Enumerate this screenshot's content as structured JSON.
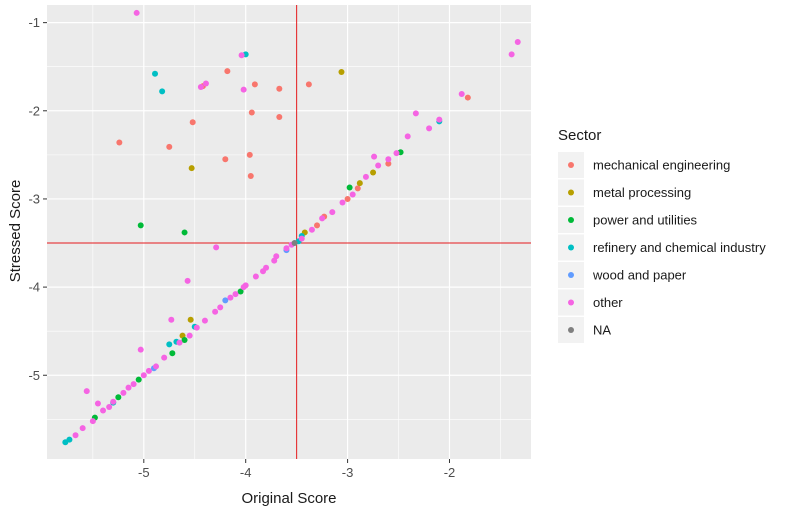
{
  "chart_data": {
    "type": "scatter",
    "xlabel": "Original Score",
    "ylabel": "Stressed Score",
    "xlim": [
      -5.95,
      -1.2
    ],
    "ylim": [
      -5.95,
      -0.8
    ],
    "x_ticks": [
      -5,
      -4,
      -3,
      -2
    ],
    "y_ticks": [
      -5,
      -4,
      -3,
      -2,
      -1
    ],
    "x_tick_labels": [
      "-5",
      "-4",
      "-3",
      "-2"
    ],
    "y_tick_labels": [
      "-5",
      "-4",
      "-3",
      "-2",
      "-1"
    ],
    "reference_lines": {
      "vertical_x": -3.5,
      "horizontal_y": -3.5,
      "color": "#e41a1c"
    },
    "grid": true,
    "panel_background": "#ebebeb",
    "legend": {
      "title": "Sector",
      "position": "right",
      "entries": [
        {
          "label": "mechanical engineering",
          "color": "#F8766D"
        },
        {
          "label": "metal processing",
          "color": "#B79F00"
        },
        {
          "label": "power and utilities",
          "color": "#00BA38"
        },
        {
          "label": "refinery and chemical industry",
          "color": "#00BFC4"
        },
        {
          "label": "wood and paper",
          "color": "#619CFF"
        },
        {
          "label": "other",
          "color": "#F564E3"
        },
        {
          "label": "NA",
          "color": "#7F7F7F"
        }
      ]
    },
    "series": [
      {
        "name": "mechanical engineering",
        "color": "#F8766D",
        "points": [
          [
            -5.24,
            -2.36
          ],
          [
            -4.75,
            -2.41
          ],
          [
            -4.52,
            -2.13
          ],
          [
            -4.18,
            -1.55
          ],
          [
            -4.2,
            -2.55
          ],
          [
            -3.91,
            -1.7
          ],
          [
            -3.94,
            -2.02
          ],
          [
            -3.96,
            -2.5
          ],
          [
            -3.95,
            -2.74
          ],
          [
            -3.67,
            -1.75
          ],
          [
            -3.67,
            -2.07
          ],
          [
            -3.38,
            -1.7
          ],
          [
            -4.42,
            -1.72
          ],
          [
            -3.23,
            -3.2
          ],
          [
            -2.9,
            -2.88
          ],
          [
            -1.82,
            -1.85
          ],
          [
            -3.0,
            -3.0
          ],
          [
            -2.6,
            -2.6
          ],
          [
            -3.3,
            -3.3
          ]
        ]
      },
      {
        "name": "metal processing",
        "color": "#B79F00",
        "points": [
          [
            -3.06,
            -1.56
          ],
          [
            -4.53,
            -2.65
          ],
          [
            -4.54,
            -4.37
          ],
          [
            -2.88,
            -2.82
          ],
          [
            -2.75,
            -2.7
          ],
          [
            -3.42,
            -3.38
          ],
          [
            -4.62,
            -4.55
          ]
        ]
      },
      {
        "name": "power and utilities",
        "color": "#00BA38",
        "points": [
          [
            -5.03,
            -3.3
          ],
          [
            -4.6,
            -3.38
          ],
          [
            -2.48,
            -2.47
          ],
          [
            -2.98,
            -2.87
          ],
          [
            -4.05,
            -4.05
          ],
          [
            -5.25,
            -5.25
          ],
          [
            -5.48,
            -5.48
          ],
          [
            -4.6,
            -4.6
          ],
          [
            -4.72,
            -4.75
          ],
          [
            -5.05,
            -5.05
          ]
        ]
      },
      {
        "name": "refinery and chemical industry",
        "color": "#00BFC4",
        "points": [
          [
            -4.89,
            -1.58
          ],
          [
            -4.82,
            -1.78
          ],
          [
            -4.0,
            -1.36
          ],
          [
            -2.1,
            -2.12
          ],
          [
            -3.48,
            -3.48
          ],
          [
            -3.45,
            -3.42
          ],
          [
            -5.77,
            -5.76
          ],
          [
            -5.73,
            -5.73
          ],
          [
            -4.75,
            -4.65
          ],
          [
            -4.5,
            -4.45
          ],
          [
            -4.68,
            -4.62
          ],
          [
            -5.3,
            -5.31
          ]
        ]
      },
      {
        "name": "wood and paper",
        "color": "#619CFF",
        "points": [
          [
            -4.2,
            -4.15
          ],
          [
            -3.6,
            -3.58
          ],
          [
            -4.9,
            -4.92
          ]
        ]
      },
      {
        "name": "other",
        "color": "#F564E3",
        "points": [
          [
            -5.07,
            -0.89
          ],
          [
            -4.44,
            -1.73
          ],
          [
            -4.39,
            -1.69
          ],
          [
            -4.04,
            -1.37
          ],
          [
            -4.02,
            -1.76
          ],
          [
            -4.29,
            -3.55
          ],
          [
            -4.57,
            -3.93
          ],
          [
            -4.73,
            -4.37
          ],
          [
            -5.03,
            -4.71
          ],
          [
            -5.56,
            -5.18
          ],
          [
            -5.45,
            -5.32
          ],
          [
            -5.34,
            -5.36
          ],
          [
            -1.33,
            -1.22
          ],
          [
            -1.39,
            -1.36
          ],
          [
            -1.88,
            -1.81
          ],
          [
            -2.33,
            -2.03
          ],
          [
            -2.41,
            -2.29
          ],
          [
            -2.7,
            -2.62
          ],
          [
            -2.74,
            -2.52
          ],
          [
            -2.52,
            -2.48
          ],
          [
            -2.2,
            -2.2
          ],
          [
            -2.1,
            -2.1
          ],
          [
            -2.95,
            -2.95
          ],
          [
            -3.15,
            -3.15
          ],
          [
            -3.25,
            -3.22
          ],
          [
            -3.35,
            -3.35
          ],
          [
            -3.55,
            -3.52
          ],
          [
            -3.6,
            -3.56
          ],
          [
            -3.7,
            -3.65
          ],
          [
            -3.8,
            -3.78
          ],
          [
            -3.9,
            -3.88
          ],
          [
            -4.0,
            -3.98
          ],
          [
            -4.1,
            -4.08
          ],
          [
            -4.3,
            -4.28
          ],
          [
            -4.4,
            -4.38
          ],
          [
            -4.55,
            -4.55
          ],
          [
            -4.65,
            -4.63
          ],
          [
            -4.8,
            -4.8
          ],
          [
            -4.95,
            -4.95
          ],
          [
            -5.1,
            -5.1
          ],
          [
            -5.2,
            -5.2
          ],
          [
            -5.3,
            -5.3
          ],
          [
            -5.4,
            -5.4
          ],
          [
            -5.5,
            -5.52
          ],
          [
            -5.6,
            -5.6
          ],
          [
            -5.67,
            -5.68
          ],
          [
            -4.02,
            -4.0
          ],
          [
            -3.83,
            -3.82
          ],
          [
            -3.45,
            -3.45
          ],
          [
            -2.82,
            -2.75
          ],
          [
            -2.6,
            -2.55
          ],
          [
            -3.05,
            -3.04
          ],
          [
            -4.88,
            -4.9
          ],
          [
            -5.0,
            -5.0
          ],
          [
            -5.15,
            -5.14
          ],
          [
            -4.48,
            -4.46
          ],
          [
            -4.25,
            -4.23
          ],
          [
            -3.72,
            -3.7
          ],
          [
            -4.15,
            -4.12
          ]
        ]
      },
      {
        "name": "NA",
        "color": "#7F7F7F",
        "points": [
          [
            -3.52,
            -3.5
          ]
        ]
      }
    ]
  }
}
